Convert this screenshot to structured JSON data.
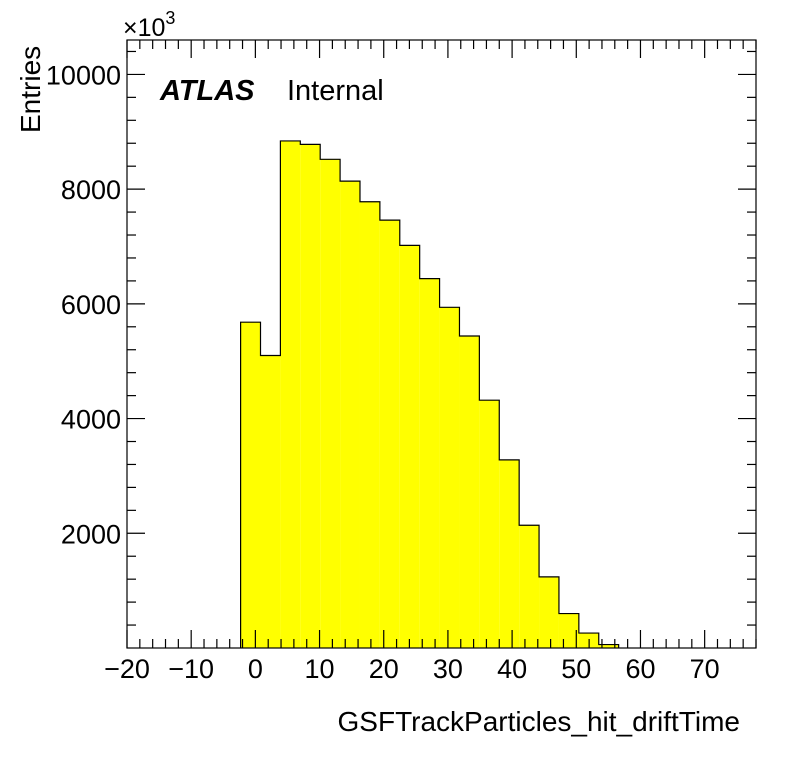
{
  "chart_data": {
    "type": "bar",
    "histogram_style": "step-filled",
    "xlabel": "GSFTrackParticles_hit_driftTime",
    "ylabel": "Entries",
    "y_multiplier_base": "×10",
    "y_multiplier_exponent": "3",
    "xlim": [
      -20,
      78
    ],
    "ylim": [
      0,
      10600
    ],
    "x_ticks": [
      -20,
      -10,
      0,
      10,
      20,
      30,
      40,
      50,
      60,
      70
    ],
    "x_tick_labels": [
      "−20",
      "−10",
      "0",
      "10",
      "20",
      "30",
      "40",
      "50",
      "60",
      "70"
    ],
    "y_ticks": [
      2000,
      4000,
      6000,
      8000,
      10000
    ],
    "y_tick_labels": [
      "2000",
      "4000",
      "6000",
      "8000",
      "10000"
    ],
    "bin_edges": [
      -2.3,
      0.8,
      3.9,
      7.0,
      10.1,
      13.2,
      16.3,
      19.4,
      22.5,
      25.6,
      28.7,
      31.8,
      34.9,
      38.0,
      41.1,
      44.2,
      47.3,
      50.4,
      53.5,
      56.6
    ],
    "values": [
      5680,
      5100,
      8840,
      8780,
      8520,
      8140,
      7780,
      7460,
      7020,
      6440,
      5940,
      5440,
      4320,
      3280,
      2140,
      1240,
      600,
      260,
      60
    ],
    "fill_color": "#ffff00",
    "line_color": "#000000",
    "grid": false,
    "legend": "none",
    "annotation": {
      "experiment": "ATLAS",
      "status": "Internal"
    }
  }
}
